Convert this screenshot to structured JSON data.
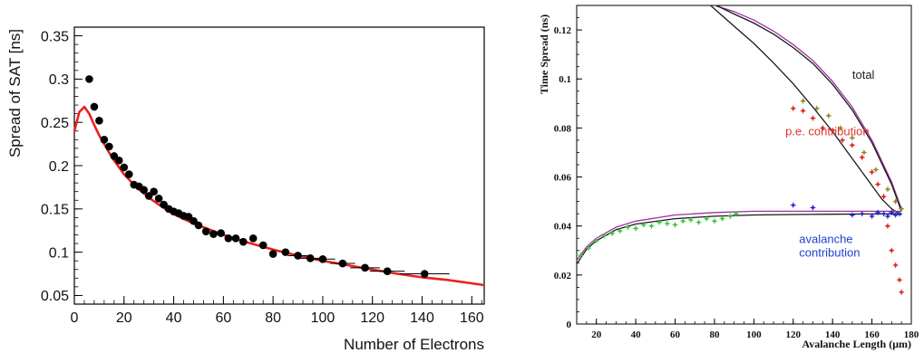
{
  "chart_data": [
    {
      "type": "scatter",
      "xlabel": "Number of Electrons",
      "ylabel": "Spread of SAT [ns]",
      "xlim": [
        0,
        165
      ],
      "ylim": [
        0.04,
        0.36
      ],
      "x_ticks": [
        0,
        20,
        40,
        60,
        80,
        100,
        120,
        140,
        160
      ],
      "y_ticks": [
        0.05,
        0.1,
        0.15,
        0.2,
        0.25,
        0.3,
        0.35
      ],
      "x_tick_labels": [
        "0",
        "20",
        "40",
        "60",
        "80",
        "100",
        "120",
        "140",
        "160"
      ],
      "y_tick_labels": [
        "0.05",
        "0.1",
        "0.15",
        "0.2",
        "0.25",
        "0.3",
        "0.35"
      ],
      "grid": false,
      "colors": {
        "points": "#000000",
        "fit": "#e8231e"
      },
      "series": [
        {
          "kind": "points",
          "x": [
            6,
            8,
            10,
            12,
            14,
            16,
            18,
            20,
            22,
            24,
            26,
            28,
            30,
            32,
            34,
            36,
            38,
            40,
            42,
            44,
            46,
            48,
            50,
            53,
            56,
            59,
            62,
            65,
            68,
            72,
            76,
            80,
            85,
            90,
            95,
            100,
            108,
            117,
            126,
            141
          ],
          "y": [
            0.3,
            0.268,
            0.252,
            0.23,
            0.222,
            0.211,
            0.206,
            0.198,
            0.19,
            0.178,
            0.176,
            0.172,
            0.165,
            0.17,
            0.162,
            0.155,
            0.15,
            0.147,
            0.145,
            0.142,
            0.141,
            0.136,
            0.131,
            0.124,
            0.121,
            0.122,
            0.116,
            0.116,
            0.112,
            0.116,
            0.108,
            0.098,
            0.1,
            0.096,
            0.093,
            0.092,
            0.087,
            0.082,
            0.078,
            0.075
          ],
          "x_err": [
            0,
            0,
            0,
            0,
            0,
            0,
            0,
            0,
            0,
            0,
            0,
            0,
            0,
            0,
            0,
            0,
            0,
            0,
            0,
            0,
            0,
            0,
            0,
            0,
            0,
            0,
            0,
            0,
            0,
            0,
            0,
            0,
            0,
            4,
            4,
            5,
            5,
            6,
            7,
            10
          ]
        },
        {
          "kind": "curve",
          "x": [
            0,
            2,
            4,
            6,
            8,
            10,
            12,
            14,
            16,
            18,
            20,
            25,
            30,
            35,
            40,
            45,
            50,
            60,
            70,
            80,
            90,
            100,
            110,
            120,
            130,
            140,
            150,
            165
          ],
          "y": [
            0.24,
            0.262,
            0.268,
            0.26,
            0.247,
            0.235,
            0.225,
            0.215,
            0.206,
            0.198,
            0.19,
            0.175,
            0.163,
            0.153,
            0.144,
            0.137,
            0.131,
            0.12,
            0.111,
            0.103,
            0.096,
            0.09,
            0.085,
            0.08,
            0.075,
            0.071,
            0.068,
            0.062
          ]
        }
      ]
    },
    {
      "type": "scatter",
      "xlabel": "Avalanche Length (μm)",
      "ylabel": "Time Spread (ns)",
      "xlim": [
        10,
        180
      ],
      "ylim": [
        0,
        0.13
      ],
      "x_ticks": [
        20,
        40,
        60,
        80,
        100,
        120,
        140,
        160,
        180
      ],
      "y_ticks": [
        0,
        0.02,
        0.04,
        0.06,
        0.08,
        0.1,
        0.12
      ],
      "x_tick_labels": [
        "20",
        "40",
        "60",
        "80",
        "100",
        "120",
        "140",
        "160",
        "180"
      ],
      "y_tick_labels": [
        "0",
        "0.02",
        "0.04",
        "0.06",
        "0.08",
        "0.1",
        "0.12"
      ],
      "grid": false,
      "annotations": [
        {
          "text": "total",
          "color": "#222222",
          "x": 150,
          "y": 0.1
        },
        {
          "text": "p.e. contribution",
          "color": "#e0342a",
          "x": 116,
          "y": 0.077
        },
        {
          "text": "avalanche",
          "color": "#2040d0",
          "x": 123,
          "y": 0.033
        },
        {
          "text": "contribution",
          "color": "#2040d0",
          "x": 123,
          "y": 0.0275
        }
      ],
      "series": [
        {
          "kind": "curve",
          "color": "#a030a0",
          "x": [
            80,
            90,
            100,
            110,
            120,
            130,
            140,
            150,
            160,
            170,
            175
          ],
          "y": [
            0.13,
            0.1275,
            0.124,
            0.1195,
            0.114,
            0.1075,
            0.099,
            0.0885,
            0.075,
            0.058,
            0.047
          ]
        },
        {
          "kind": "curve",
          "color": "#1a1a1a",
          "x": [
            81,
            90,
            100,
            110,
            120,
            130,
            140,
            150,
            160,
            170,
            175
          ],
          "y": [
            0.13,
            0.1265,
            0.1228,
            0.1183,
            0.1128,
            0.1063,
            0.0978,
            0.0873,
            0.074,
            0.057,
            0.046
          ]
        },
        {
          "kind": "curve",
          "color": "#1a1a1a",
          "x": [
            78,
            90,
            100,
            110,
            120,
            130,
            140,
            150,
            160,
            165,
            170,
            175
          ],
          "y": [
            0.13,
            0.1215,
            0.1145,
            0.1065,
            0.098,
            0.0885,
            0.0785,
            0.0675,
            0.0565,
            0.051,
            0.047,
            0.0445
          ]
        },
        {
          "kind": "curve",
          "color": "#a030a0",
          "x": [
            10,
            15,
            20,
            30,
            40,
            60,
            80,
            100,
            120,
            140,
            160,
            175
          ],
          "y": [
            0.026,
            0.0315,
            0.035,
            0.0395,
            0.042,
            0.0445,
            0.0455,
            0.046,
            0.046,
            0.046,
            0.046,
            0.046
          ]
        },
        {
          "kind": "curve",
          "color": "#1a1a1a",
          "x": [
            10,
            15,
            20,
            30,
            40,
            60,
            80,
            100,
            120,
            140,
            160,
            175
          ],
          "y": [
            0.0245,
            0.0305,
            0.034,
            0.0385,
            0.0408,
            0.043,
            0.044,
            0.0445,
            0.0447,
            0.0448,
            0.0449,
            0.045
          ]
        },
        {
          "kind": "points",
          "color": "#3ac83a",
          "x": [
            12,
            16,
            20,
            24,
            28,
            32,
            36,
            40,
            44,
            48,
            52,
            56,
            60,
            64,
            68,
            72,
            76,
            80,
            84,
            88,
            91
          ],
          "y": [
            0.028,
            0.031,
            0.034,
            0.036,
            0.037,
            0.038,
            0.0395,
            0.039,
            0.0405,
            0.04,
            0.0415,
            0.041,
            0.0405,
            0.042,
            0.0425,
            0.0415,
            0.043,
            0.042,
            0.043,
            0.044,
            0.045
          ]
        },
        {
          "kind": "points",
          "color": "#2028d8",
          "x": [
            120,
            130,
            150,
            155,
            160,
            163,
            166,
            168,
            170,
            172,
            174
          ],
          "y": [
            0.0485,
            0.0475,
            0.0445,
            0.045,
            0.044,
            0.0455,
            0.045,
            0.044,
            0.0455,
            0.0445,
            0.045
          ]
        },
        {
          "kind": "points",
          "color": "#e02020",
          "x": [
            120,
            125,
            130,
            135,
            140,
            145,
            150,
            155,
            160,
            163,
            166,
            168,
            170,
            172,
            174,
            175
          ],
          "y": [
            0.088,
            0.087,
            0.084,
            0.08,
            0.079,
            0.075,
            0.073,
            0.068,
            0.062,
            0.057,
            0.052,
            0.04,
            0.03,
            0.024,
            0.018,
            0.013
          ]
        },
        {
          "kind": "points",
          "color": "#8a8a20",
          "x": [
            125,
            132,
            138,
            144,
            150,
            156,
            162,
            168,
            172,
            175
          ],
          "y": [
            0.091,
            0.088,
            0.085,
            0.08,
            0.076,
            0.07,
            0.063,
            0.055,
            0.05,
            0.047
          ]
        }
      ]
    }
  ]
}
